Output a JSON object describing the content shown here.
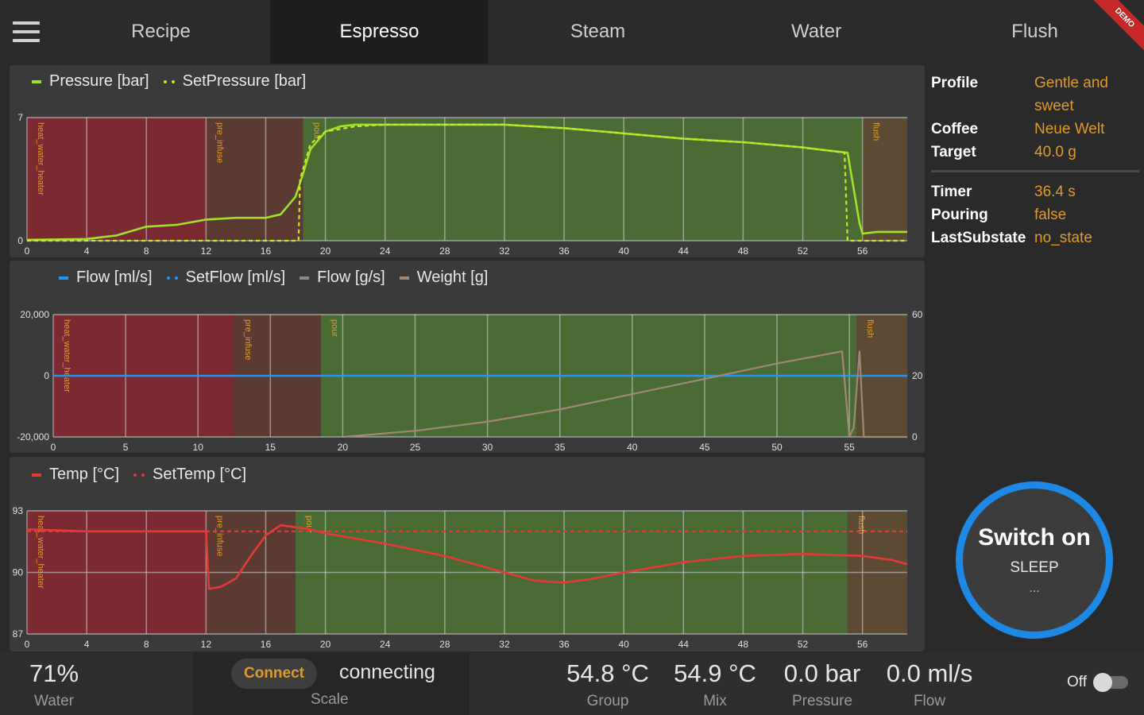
{
  "tabs": [
    {
      "label": "Recipe",
      "active": false
    },
    {
      "label": "Espresso",
      "active": true
    },
    {
      "label": "Steam",
      "active": false
    },
    {
      "label": "Water",
      "active": false
    },
    {
      "label": "Flush",
      "active": false
    }
  ],
  "ribbon_label": "DEMO",
  "phase_colors": {
    "heat_water_heater": "#7a2a30",
    "pre_infuse": "#5b3a32",
    "pour": "#4a6b34",
    "flush": "#5d4a32"
  },
  "charts": {
    "pressure": {
      "legend": [
        "Pressure [bar]",
        "SetPressure [bar]"
      ],
      "colors": {
        "pressure": "#9ee22a",
        "set_pressure": "#c8e62a"
      }
    },
    "flow": {
      "legend": [
        "Flow [ml/s]",
        "SetFlow [ml/s]",
        "Flow [g/s]",
        "Weight [g]"
      ],
      "colors": {
        "flow": "#2196f3",
        "set_flow": "#2196f3",
        "flow_gs": "#8a8a8a",
        "weight": "#a08878"
      }
    },
    "temp": {
      "legend": [
        "Temp [°C]",
        "SetTemp [°C]"
      ],
      "colors": {
        "temp": "#e53935",
        "set_temp": "#e53935"
      }
    }
  },
  "chart_data": [
    {
      "type": "line",
      "x_ticks": [
        "0",
        "4",
        "8",
        "12",
        "16",
        "20",
        "24",
        "28",
        "32",
        "36",
        "40",
        "44",
        "48",
        "52",
        "56"
      ],
      "y_ticks": [
        "0",
        "7"
      ],
      "xlim": [
        0,
        59
      ],
      "ylim": [
        0,
        7
      ],
      "phases": [
        {
          "name": "heat_water_heater",
          "start": 0,
          "end": 12
        },
        {
          "name": "pre_infuse",
          "start": 12,
          "end": 18.5
        },
        {
          "name": "pour",
          "start": 18.5,
          "end": 56
        },
        {
          "name": "flush",
          "start": 56,
          "end": 59
        }
      ],
      "series": [
        {
          "name": "Pressure [bar]",
          "x": [
            0,
            4,
            6,
            8,
            10,
            12,
            14,
            16,
            17,
            18,
            18.5,
            19,
            20,
            21,
            22,
            23,
            24,
            28,
            32,
            36,
            40,
            44,
            48,
            52,
            55,
            55.8,
            56,
            57,
            59
          ],
          "y": [
            0.05,
            0.1,
            0.3,
            0.8,
            0.9,
            1.2,
            1.3,
            1.3,
            1.5,
            2.5,
            3.8,
            5.2,
            6.2,
            6.5,
            6.6,
            6.6,
            6.6,
            6.6,
            6.6,
            6.4,
            6.1,
            5.8,
            5.6,
            5.3,
            5.0,
            1.0,
            0.4,
            0.5,
            0.5
          ]
        },
        {
          "name": "SetPressure [bar]",
          "x": [
            0,
            18.2,
            18.3,
            19,
            20,
            22,
            24,
            28,
            32,
            36,
            40,
            44,
            48,
            52,
            54.8,
            55,
            56,
            59
          ],
          "y": [
            0,
            0,
            3.5,
            5.5,
            6.2,
            6.5,
            6.6,
            6.6,
            6.6,
            6.4,
            6.1,
            5.8,
            5.6,
            5.3,
            5.0,
            0,
            0,
            0
          ]
        }
      ]
    },
    {
      "type": "line",
      "x_ticks": [
        "0",
        "5",
        "10",
        "15",
        "20",
        "25",
        "30",
        "35",
        "40",
        "45",
        "50",
        "55"
      ],
      "y_ticks_left": [
        "20,000",
        "0",
        "-20,000"
      ],
      "y_ticks_right": [
        "60",
        "20",
        "0"
      ],
      "xlim": [
        0,
        59
      ],
      "ylim": [
        -20000,
        20000
      ],
      "phases": [
        {
          "name": "heat_water_heater",
          "start": 0,
          "end": 12.5
        },
        {
          "name": "pre_infuse",
          "start": 12.5,
          "end": 18.5
        },
        {
          "name": "pour",
          "start": 18.5,
          "end": 55.5
        },
        {
          "name": "flush",
          "start": 55.5,
          "end": 59
        }
      ],
      "series": [
        {
          "name": "Flow [ml/s]",
          "x": [
            0,
            59
          ],
          "y": [
            0,
            0
          ]
        },
        {
          "name": "Weight [g]",
          "x": [
            20,
            25,
            30,
            35,
            40,
            45,
            50,
            54.5,
            55,
            55.3,
            55.7,
            56,
            59
          ],
          "y": [
            0,
            2,
            5,
            9,
            14,
            19,
            24,
            28,
            0,
            3,
            28,
            0,
            0
          ],
          "axis": "right",
          "right_ylim": [
            0,
            40
          ]
        }
      ]
    },
    {
      "type": "line",
      "x_ticks": [
        "0",
        "4",
        "8",
        "12",
        "16",
        "20",
        "24",
        "28",
        "32",
        "36",
        "40",
        "44",
        "48",
        "52",
        "56"
      ],
      "y_ticks": [
        "87",
        "90",
        "93"
      ],
      "xlim": [
        0,
        59
      ],
      "ylim": [
        87,
        93
      ],
      "phases": [
        {
          "name": "heat_water_heater",
          "start": 0,
          "end": 12
        },
        {
          "name": "pre_infuse",
          "start": 12,
          "end": 18
        },
        {
          "name": "pour",
          "start": 18,
          "end": 55
        },
        {
          "name": "flush",
          "start": 55,
          "end": 59
        }
      ],
      "series": [
        {
          "name": "Temp [°C]",
          "x": [
            0,
            4,
            8,
            12,
            12.2,
            13,
            14,
            15,
            16,
            17,
            18,
            19,
            20,
            24,
            28,
            32,
            34,
            36,
            38,
            40,
            44,
            48,
            52,
            56,
            58,
            59
          ],
          "y": [
            92.1,
            92.0,
            92.0,
            92.0,
            89.2,
            89.3,
            89.7,
            90.8,
            91.8,
            92.3,
            92.2,
            92.1,
            91.9,
            91.4,
            90.8,
            90.0,
            89.6,
            89.5,
            89.7,
            90.0,
            90.5,
            90.8,
            90.9,
            90.8,
            90.6,
            90.4
          ]
        },
        {
          "name": "SetTemp [°C]",
          "x": [
            0,
            59
          ],
          "y": [
            92.0,
            92.0
          ]
        }
      ]
    }
  ],
  "info": {
    "rows1": [
      {
        "key": "Profile",
        "val": "Gentle and sweet"
      },
      {
        "key": "Coffee",
        "val": "Neue Welt"
      },
      {
        "key": "Target",
        "val": "40.0 g"
      }
    ],
    "rows2": [
      {
        "key": "Timer",
        "val": "36.4 s"
      },
      {
        "key": "Pouring",
        "val": "false"
      },
      {
        "key": "LastSubstate",
        "val": "no_state"
      }
    ]
  },
  "power": {
    "title": "Switch on",
    "state": "SLEEP",
    "sub": "...",
    "color": "#1e88e5"
  },
  "status": {
    "water": {
      "value": "71%",
      "label": "Water"
    },
    "scale": {
      "button": "Connect",
      "state": "connecting",
      "label": "Scale"
    },
    "group": {
      "value": "54.8 °C",
      "label": "Group"
    },
    "mix": {
      "value": "54.9 °C",
      "label": "Mix"
    },
    "pressure": {
      "value": "0.0 bar",
      "label": "Pressure"
    },
    "flow": {
      "value": "0.0 ml/s",
      "label": "Flow"
    },
    "toggle": {
      "label": "Off",
      "on": false
    }
  }
}
